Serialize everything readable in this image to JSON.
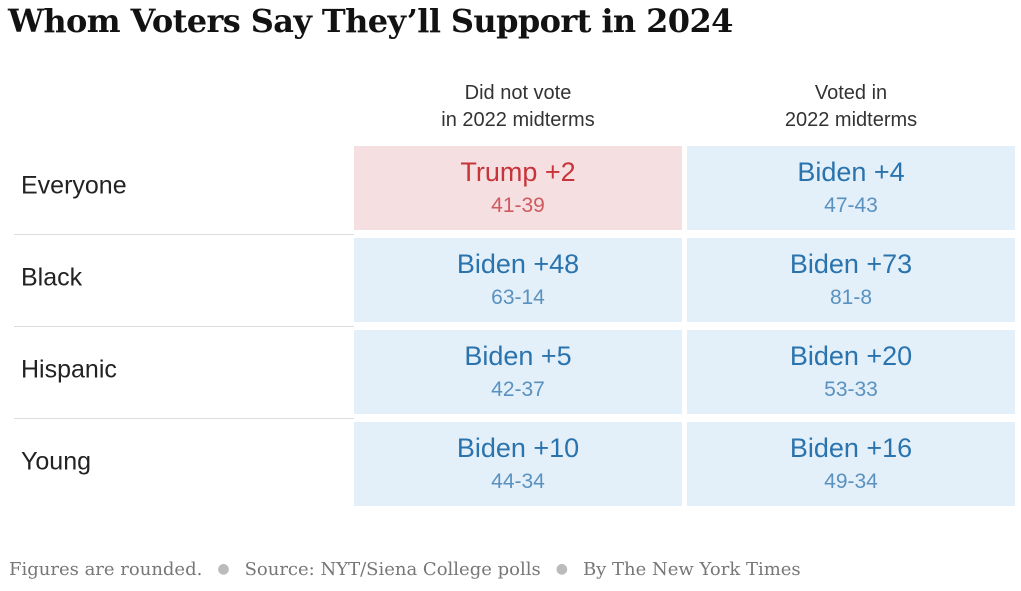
{
  "title": "Whom Voters Say They’ll Support in 2024",
  "columns": [
    {
      "line1": "Did not vote",
      "line2": "in 2022 midterms"
    },
    {
      "line1": "Voted in",
      "line2": "2022 midterms"
    }
  ],
  "colors": {
    "biden_bg": "#e3f0fa",
    "biden_text": "#2b73ad",
    "biden_sub": "#5a91bf",
    "trump_bg": "#f6dfe0",
    "trump_text": "#c7343a",
    "trump_sub": "#cf5a5f"
  },
  "chart_data": {
    "type": "table",
    "title": "Whom Voters Say They’ll Support in 2024",
    "columns": [
      "Did not vote in 2022 midterms",
      "Voted in 2022 midterms"
    ],
    "rows": [
      {
        "label": "Everyone",
        "cells": [
          {
            "leader": "Trump",
            "margin": "Trump +2",
            "score": "41-39"
          },
          {
            "leader": "Biden",
            "margin": "Biden +4",
            "score": "47-43"
          }
        ]
      },
      {
        "label": "Black",
        "cells": [
          {
            "leader": "Biden",
            "margin": "Biden +48",
            "score": "63-14"
          },
          {
            "leader": "Biden",
            "margin": "Biden +73",
            "score": "81-8"
          }
        ]
      },
      {
        "label": "Hispanic",
        "cells": [
          {
            "leader": "Biden",
            "margin": "Biden +5",
            "score": "42-37"
          },
          {
            "leader": "Biden",
            "margin": "Biden +20",
            "score": "53-33"
          }
        ]
      },
      {
        "label": "Young",
        "cells": [
          {
            "leader": "Biden",
            "margin": "Biden +10",
            "score": "44-34"
          },
          {
            "leader": "Biden",
            "margin": "Biden +16",
            "score": "49-34"
          }
        ]
      }
    ]
  },
  "footer": {
    "note": "Figures are rounded.",
    "source": "Source: NYT/Siena College polls",
    "credit": "By The New York Times"
  }
}
